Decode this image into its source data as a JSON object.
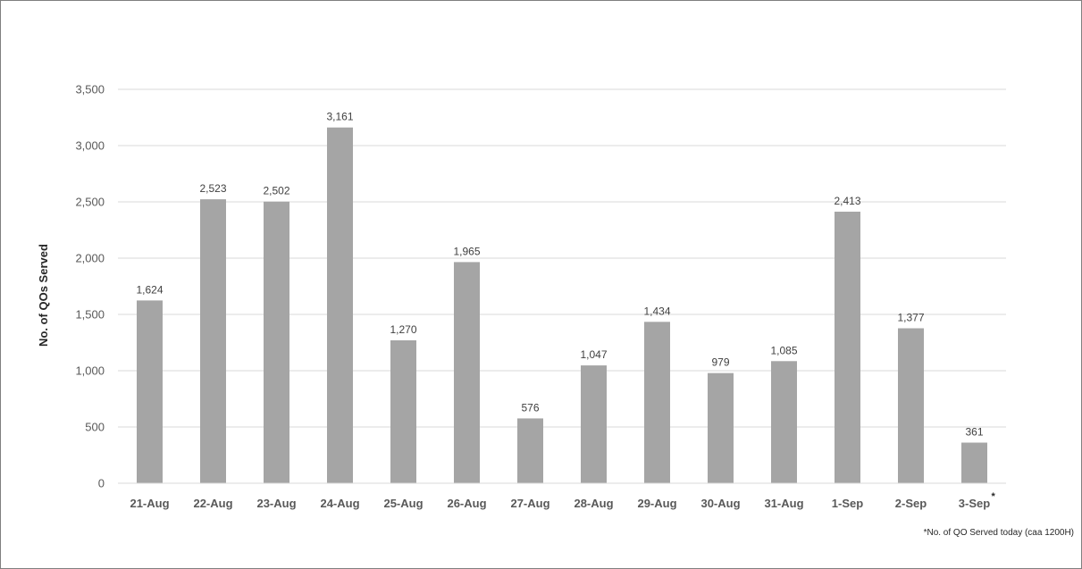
{
  "chart_data": {
    "type": "bar",
    "title": "",
    "xlabel": "",
    "ylabel": "No. of QOs Served",
    "ylim": [
      0,
      3500
    ],
    "y_ticks": [
      "0",
      "500",
      "1,000",
      "1,500",
      "2,000",
      "2,500",
      "3,000",
      "3,500"
    ],
    "categories": [
      "21-Aug",
      "22-Aug",
      "23-Aug",
      "24-Aug",
      "25-Aug",
      "26-Aug",
      "27-Aug",
      "28-Aug",
      "29-Aug",
      "30-Aug",
      "31-Aug",
      "1-Sep",
      "2-Sep",
      "3-Sep"
    ],
    "values": [
      1624,
      2523,
      2502,
      3161,
      1270,
      1965,
      576,
      1047,
      1434,
      979,
      1085,
      2413,
      1377,
      361
    ],
    "data_labels": [
      "1,624",
      "2,523",
      "2,502",
      "3,161",
      "1,270",
      "1,965",
      "576",
      "1,047",
      "1,434",
      "979",
      "1,085",
      "2,413",
      "1,377",
      "361"
    ],
    "grid": true,
    "legend": "none",
    "bar_color": "#a5a5a5",
    "gridline_color": "#d9d9d9",
    "annotation_mark": "*",
    "annotation_mark_category": "3-Sep",
    "footnote": "*No. of QO Served today (caa 1200H)"
  }
}
